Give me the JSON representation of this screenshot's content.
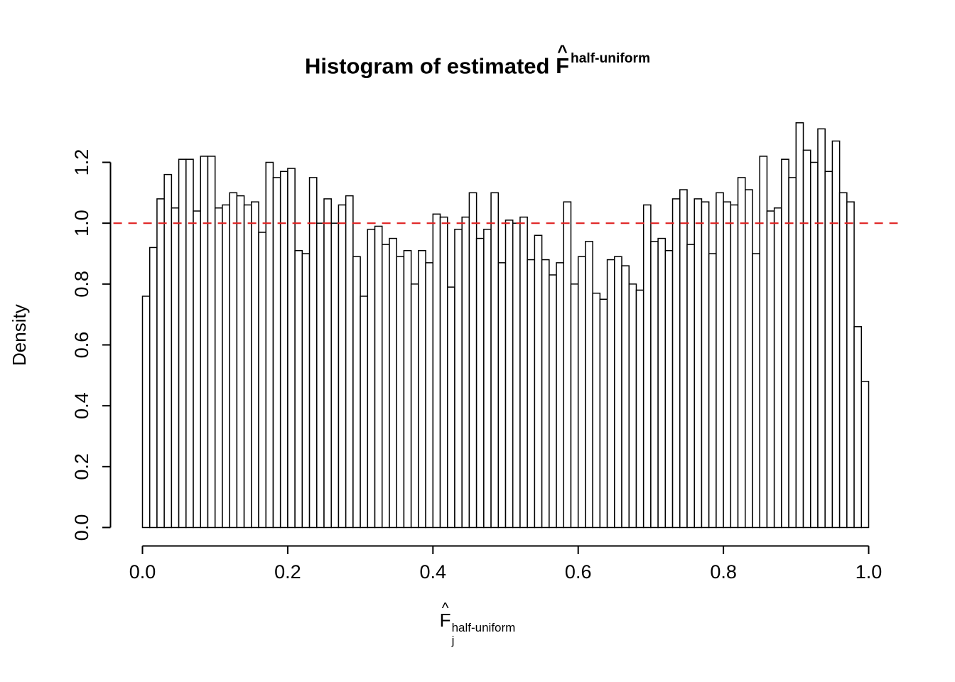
{
  "figure": {
    "background": "#ffffff",
    "title": {
      "prefix": "Histogram of estimated ",
      "f": "F",
      "hat": "^",
      "superscript": "half-uniform"
    },
    "xlabel": {
      "f": "F",
      "hat": "^",
      "subscript": "j",
      "superscript": "half-uniform"
    },
    "ylabel": "Density"
  },
  "chart_data": {
    "type": "bar",
    "title": "Histogram of estimated F^half-uniform",
    "xlabel": "F_j^half-uniform",
    "ylabel": "Density",
    "xlim": [
      0,
      1
    ],
    "ylim": [
      0,
      1.2
    ],
    "bin_start": 0,
    "bin_width": 0.01,
    "grid": false,
    "bar_fill": "#ffffff",
    "bar_stroke": "#000000",
    "axis_color": "#000000",
    "ref_line": {
      "y": 1.0,
      "color": "#e02222",
      "style": "dashed"
    },
    "x_ticks": [
      0,
      0.2,
      0.4,
      0.6,
      0.8,
      1.0
    ],
    "x_tick_labels": [
      "0.0",
      "0.2",
      "0.4",
      "0.6",
      "0.8",
      "1.0"
    ],
    "y_ticks": [
      0,
      0.2,
      0.4,
      0.6,
      0.8,
      1.0,
      1.2
    ],
    "y_tick_labels": [
      "0.0",
      "0.2",
      "0.4",
      "0.6",
      "0.8",
      "1.0",
      "1.2"
    ],
    "values": [
      0.76,
      0.92,
      1.08,
      1.16,
      1.05,
      1.21,
      1.21,
      1.04,
      1.22,
      1.22,
      1.05,
      1.06,
      1.1,
      1.09,
      1.06,
      1.07,
      0.97,
      1.2,
      1.15,
      1.17,
      1.18,
      0.91,
      0.9,
      1.15,
      1.0,
      1.08,
      1.0,
      1.06,
      1.09,
      0.89,
      0.76,
      0.98,
      0.99,
      0.93,
      0.95,
      0.89,
      0.91,
      0.8,
      0.91,
      0.87,
      1.03,
      1.02,
      0.79,
      0.98,
      1.02,
      1.1,
      0.95,
      0.98,
      1.1,
      0.87,
      1.01,
      1.0,
      1.02,
      0.88,
      0.96,
      0.88,
      0.83,
      0.87,
      1.07,
      0.8,
      0.89,
      0.94,
      0.77,
      0.75,
      0.88,
      0.89,
      0.86,
      0.8,
      0.78,
      1.06,
      0.94,
      0.95,
      0.91,
      1.08,
      1.11,
      0.93,
      1.08,
      1.07,
      0.9,
      1.1,
      1.07,
      1.06,
      1.15,
      1.11,
      0.9,
      1.22,
      1.04,
      1.05,
      1.21,
      1.15,
      1.33,
      1.24,
      1.2,
      1.31,
      1.17,
      1.27,
      1.1,
      1.07,
      0.66,
      0.48
    ]
  }
}
